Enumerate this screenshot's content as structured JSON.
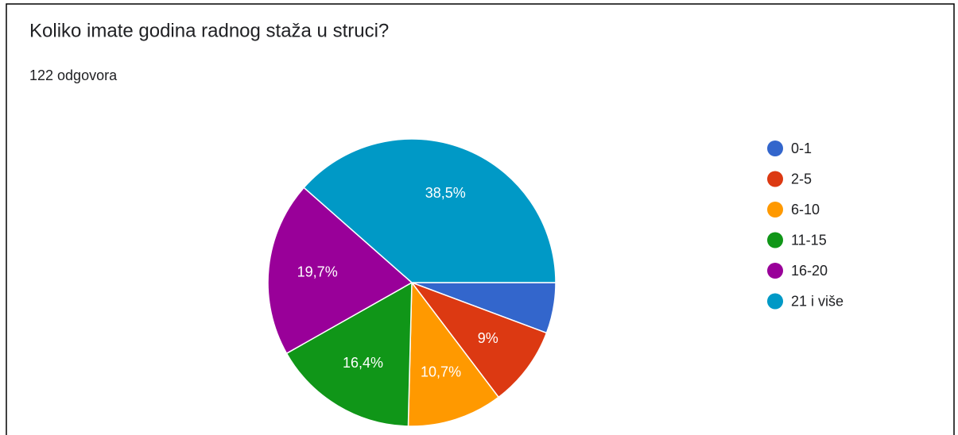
{
  "chart_data": {
    "type": "pie",
    "title": "Koliko imate godina radnog staža u struci?",
    "subtitle": "122 odgovora",
    "categories": [
      "0-1",
      "2-5",
      "6-10",
      "11-15",
      "16-20",
      "21 i više"
    ],
    "values": [
      5.7,
      9,
      10.7,
      16.4,
      19.7,
      38.5
    ],
    "value_labels": [
      null,
      "9%",
      "10,7%",
      "16,4%",
      "19,7%",
      "38,5%"
    ],
    "colors": [
      "#3366cc",
      "#dc3912",
      "#ff9900",
      "#109618",
      "#990099",
      "#0099c6"
    ],
    "legend": "right"
  }
}
